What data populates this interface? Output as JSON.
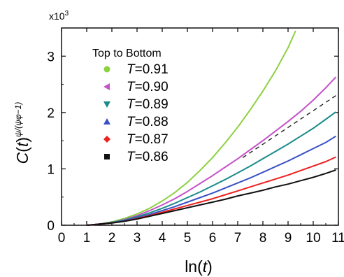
{
  "chart_data": {
    "type": "line",
    "title": "",
    "multiplier": "x10",
    "multiplier_exp": "3",
    "xlabel": {
      "pre": "ln(",
      "var": "t",
      "post": ")"
    },
    "ylabel": {
      "pre": "C(",
      "var": "t",
      "post": ")",
      "exponent": "ψ/(ψφ−1)"
    },
    "xlim": [
      0,
      11
    ],
    "ylim": [
      0,
      3.5
    ],
    "xticks": [
      "0",
      "1",
      "2",
      "3",
      "4",
      "5",
      "6",
      "7",
      "8",
      "9",
      "10",
      "11"
    ],
    "yticks": [
      "0",
      "1",
      "2",
      "3"
    ],
    "grid": false,
    "legend_position": "top-left",
    "legend_title": "Top to Bottom",
    "series": [
      {
        "name": "T=0.91",
        "label_var": "T",
        "label_value": "=0.91",
        "color": "#8cd13f",
        "marker": "circle",
        "x": [
          1.0,
          1.5,
          2.0,
          2.5,
          3.0,
          3.5,
          4.0,
          4.5,
          5.0,
          5.5,
          6.0,
          6.5,
          7.0,
          7.5,
          8.0,
          8.5,
          9.0,
          9.3
        ],
        "y": [
          0.0,
          0.02,
          0.06,
          0.12,
          0.2,
          0.3,
          0.43,
          0.58,
          0.76,
          0.97,
          1.2,
          1.46,
          1.74,
          2.05,
          2.38,
          2.74,
          3.15,
          3.45
        ]
      },
      {
        "name": "T=0.90",
        "label_var": "T",
        "label_value": "=0.90",
        "color": "#c552c8",
        "marker": "triangle-left",
        "x": [
          1.0,
          1.5,
          2.0,
          2.5,
          3.0,
          3.5,
          4.0,
          4.5,
          5.0,
          5.5,
          6.0,
          6.5,
          7.0,
          7.5,
          8.0,
          8.5,
          9.0,
          9.5,
          10.0,
          10.5,
          10.9
        ],
        "y": [
          0.0,
          0.02,
          0.05,
          0.1,
          0.17,
          0.26,
          0.36,
          0.47,
          0.6,
          0.74,
          0.88,
          1.03,
          1.18,
          1.34,
          1.5,
          1.67,
          1.84,
          2.02,
          2.22,
          2.44,
          2.63
        ]
      },
      {
        "name": "T=0.89",
        "label_var": "T",
        "label_value": "=0.89",
        "color": "#1b8a8a",
        "marker": "triangle-down",
        "x": [
          1.0,
          1.5,
          2.0,
          2.5,
          3.0,
          3.5,
          4.0,
          4.5,
          5.0,
          5.5,
          6.0,
          6.5,
          7.0,
          7.5,
          8.0,
          8.5,
          9.0,
          9.5,
          10.0,
          10.5,
          10.9
        ],
        "y": [
          0.0,
          0.02,
          0.05,
          0.09,
          0.15,
          0.22,
          0.3,
          0.39,
          0.49,
          0.59,
          0.7,
          0.81,
          0.93,
          1.05,
          1.18,
          1.31,
          1.44,
          1.58,
          1.72,
          1.88,
          2.01
        ]
      },
      {
        "name": "T=0.88",
        "label_var": "T",
        "label_value": "=0.88",
        "color": "#3a51c4",
        "marker": "triangle-up",
        "x": [
          1.0,
          1.5,
          2.0,
          2.5,
          3.0,
          3.5,
          4.0,
          4.5,
          5.0,
          5.5,
          6.0,
          6.5,
          7.0,
          7.5,
          8.0,
          8.5,
          9.0,
          9.5,
          10.0,
          10.5,
          10.9
        ],
        "y": [
          0.0,
          0.02,
          0.04,
          0.08,
          0.13,
          0.19,
          0.26,
          0.33,
          0.41,
          0.49,
          0.57,
          0.66,
          0.75,
          0.84,
          0.94,
          1.04,
          1.14,
          1.25,
          1.36,
          1.47,
          1.58
        ]
      },
      {
        "name": "T=0.87",
        "label_var": "T",
        "label_value": "=0.87",
        "color": "#ee2020",
        "marker": "diamond",
        "x": [
          1.0,
          1.5,
          2.0,
          2.5,
          3.0,
          3.5,
          4.0,
          4.5,
          5.0,
          5.5,
          6.0,
          6.5,
          7.0,
          7.5,
          8.0,
          8.5,
          9.0,
          9.5,
          10.0,
          10.5,
          10.9
        ],
        "y": [
          0.0,
          0.02,
          0.04,
          0.07,
          0.12,
          0.17,
          0.23,
          0.29,
          0.35,
          0.41,
          0.47,
          0.54,
          0.61,
          0.68,
          0.75,
          0.82,
          0.89,
          0.97,
          1.05,
          1.13,
          1.21
        ]
      },
      {
        "name": "T=0.86",
        "label_var": "T",
        "label_value": "=0.86",
        "color": "#111111",
        "marker": "square",
        "x": [
          1.0,
          1.5,
          2.0,
          2.5,
          3.0,
          3.5,
          4.0,
          4.5,
          5.0,
          5.5,
          6.0,
          6.5,
          7.0,
          7.5,
          8.0,
          8.5,
          9.0,
          9.5,
          10.0,
          10.5,
          10.9
        ],
        "y": [
          0.0,
          0.02,
          0.04,
          0.07,
          0.11,
          0.16,
          0.21,
          0.26,
          0.31,
          0.36,
          0.41,
          0.46,
          0.52,
          0.57,
          0.62,
          0.68,
          0.73,
          0.79,
          0.85,
          0.92,
          0.98
        ]
      }
    ],
    "reference_line": {
      "style": "dashed",
      "color": "#222222",
      "x": [
        7.2,
        10.9
      ],
      "y": [
        1.2,
        2.3
      ]
    }
  }
}
